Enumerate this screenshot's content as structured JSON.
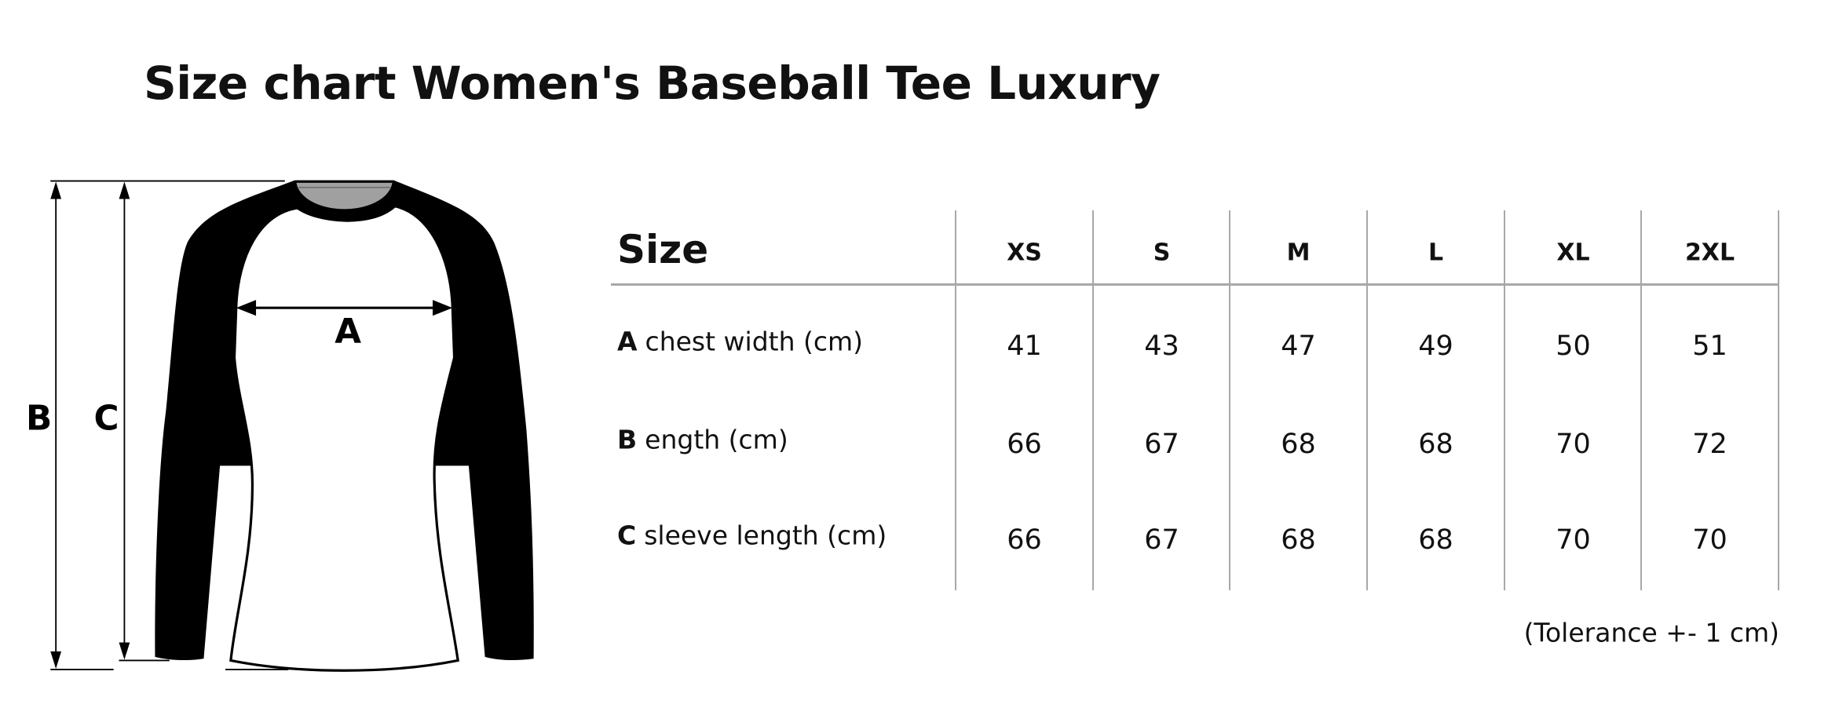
{
  "title": "Size chart Women's Baseball Tee Luxury",
  "diagram": {
    "label_a": "A",
    "label_b": "B",
    "label_c": "C"
  },
  "table": {
    "header": "Size",
    "sizes": [
      "XS",
      "S",
      "M",
      "L",
      "XL",
      "2XL"
    ],
    "rows": [
      {
        "key": "A",
        "label": "chest width (cm)",
        "values": [
          "41",
          "43",
          "47",
          "49",
          "50",
          "51"
        ]
      },
      {
        "key": "B",
        "label": "ength (cm)",
        "values": [
          "66",
          "67",
          "68",
          "68",
          "70",
          "72"
        ]
      },
      {
        "key": "C",
        "label": "sleeve length (cm)",
        "values": [
          "66",
          "67",
          "68",
          "68",
          "70",
          "70"
        ]
      }
    ]
  },
  "tolerance": "(Tolerance +- 1 cm)",
  "colors": {
    "shirt_sleeves": "#000000",
    "shirt_body": "#ffffff",
    "collar": "#a0a0a0",
    "grid": "#a8a8a8"
  }
}
